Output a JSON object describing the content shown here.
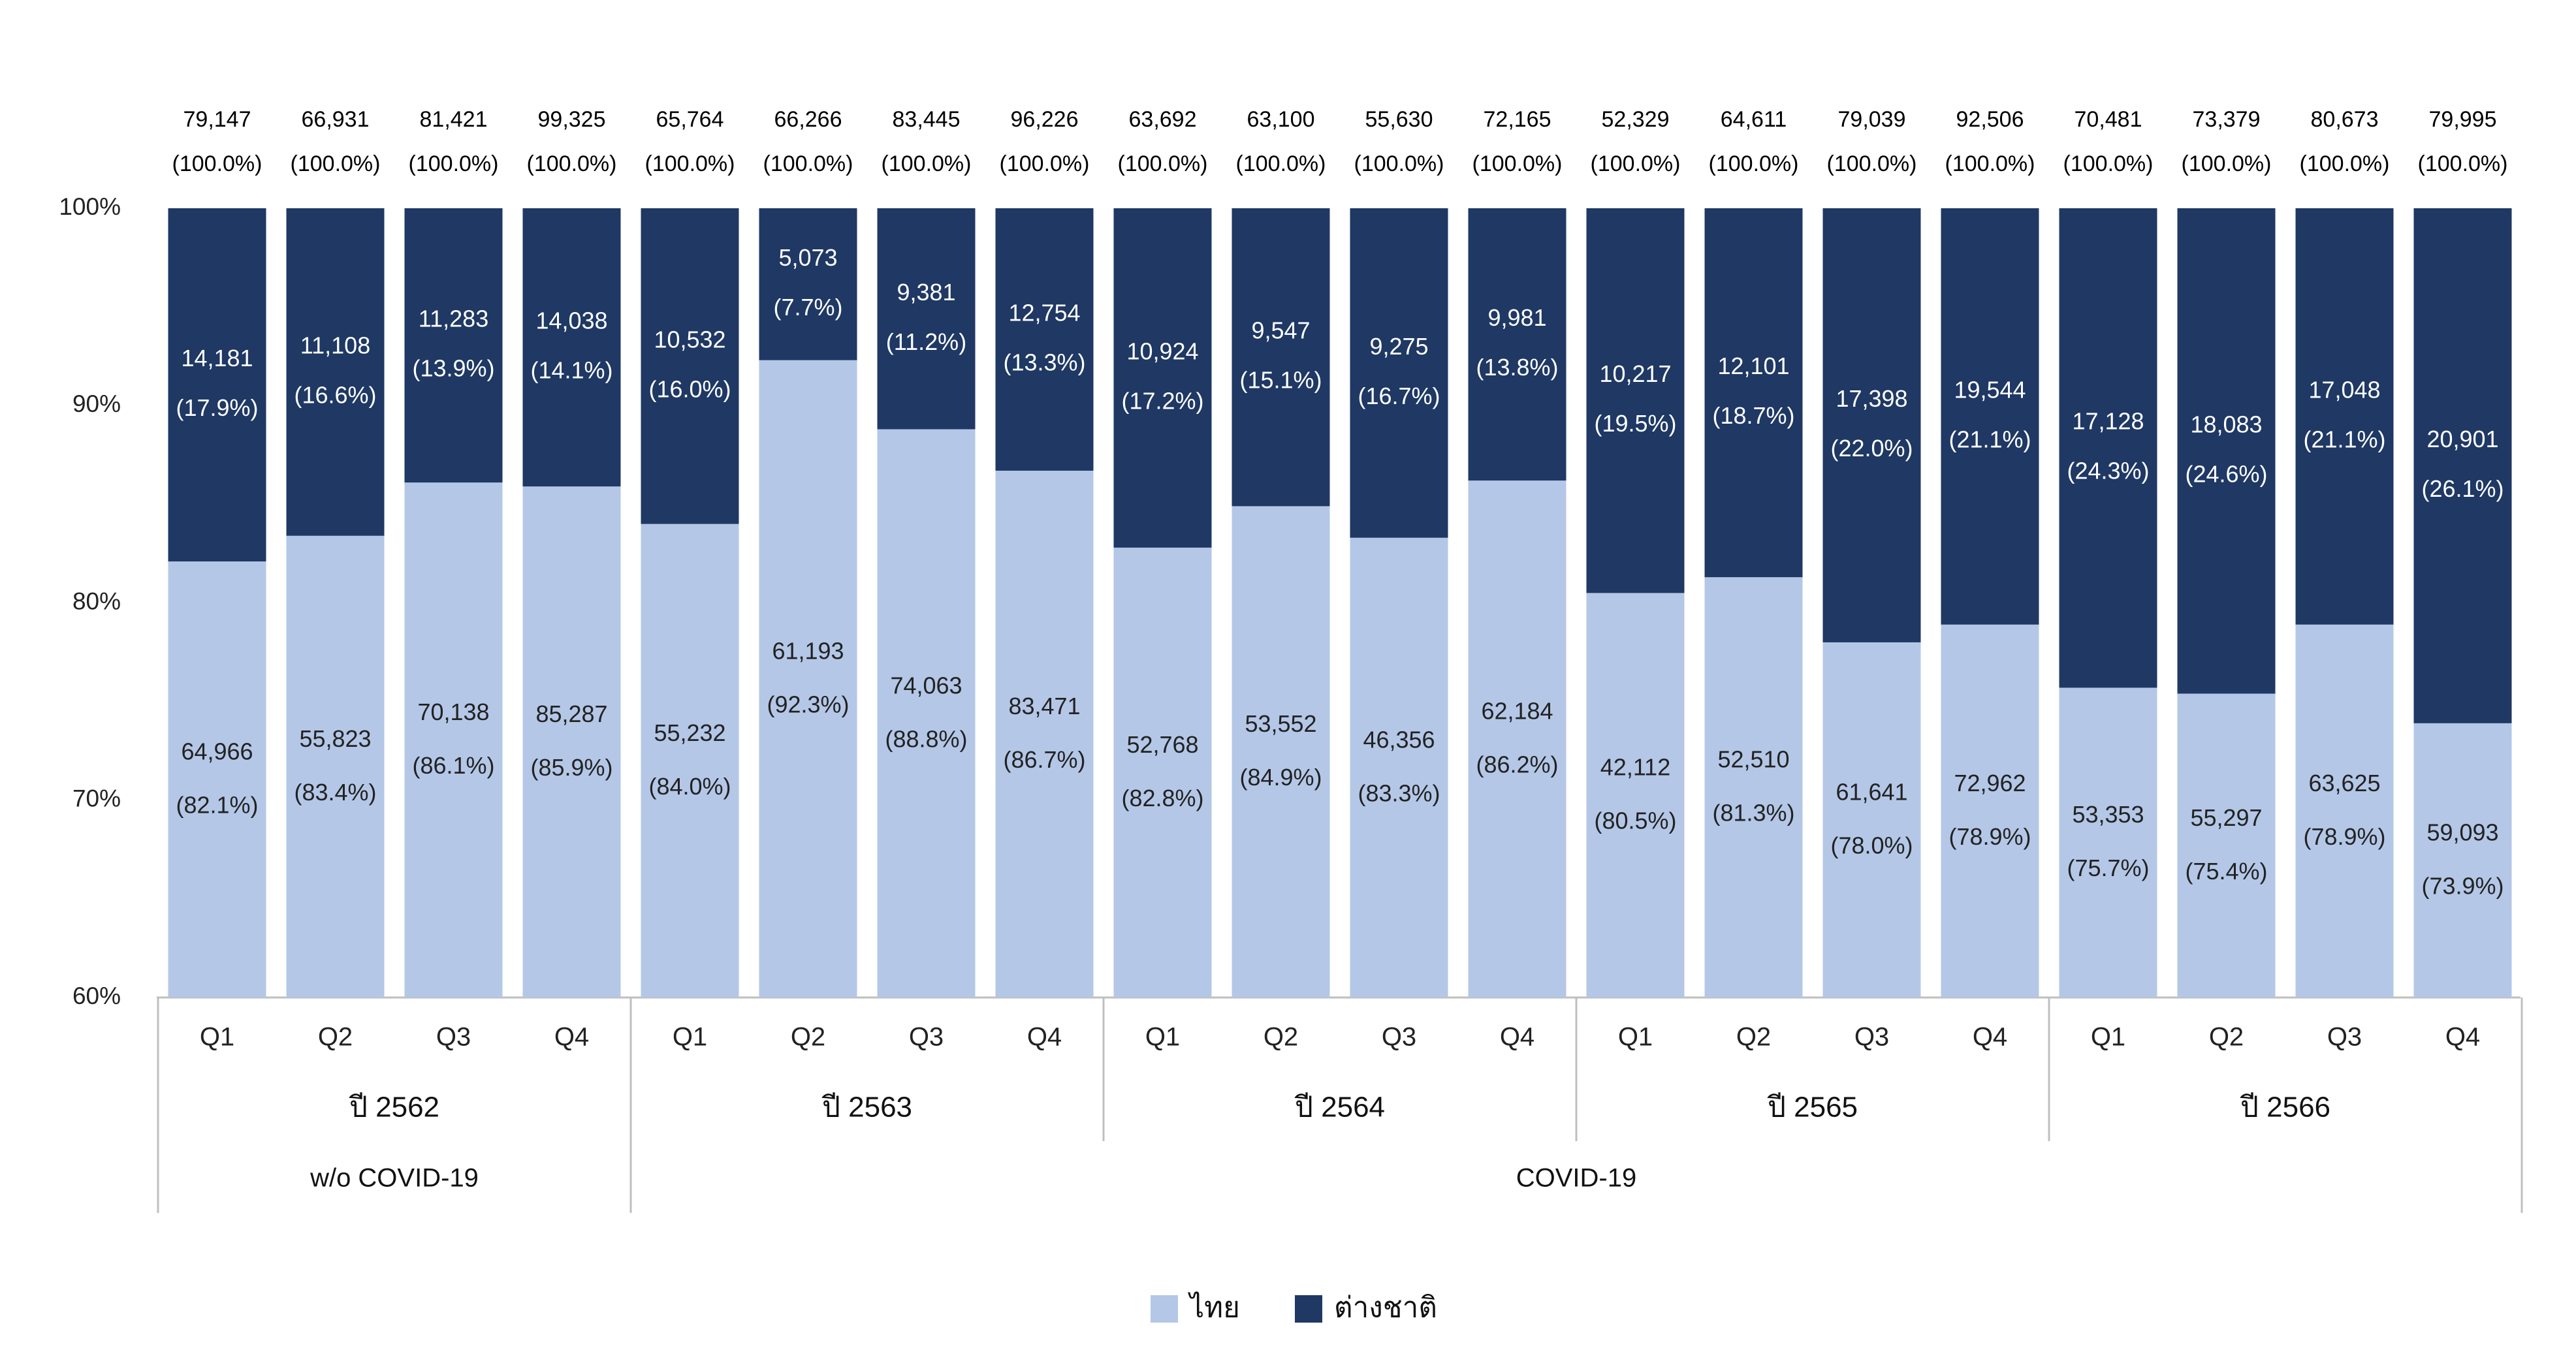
{
  "chart_data": {
    "type": "bar",
    "stacked": true,
    "percent": true,
    "ylim": [
      60,
      100
    ],
    "yticks": [
      60,
      70,
      80,
      90,
      100
    ],
    "ytick_labels": [
      "60%",
      "70%",
      "80%",
      "90%",
      "100%"
    ],
    "grid": false,
    "legend_position": "bottom",
    "categories": [
      "Q1",
      "Q2",
      "Q3",
      "Q4",
      "Q1",
      "Q2",
      "Q3",
      "Q4",
      "Q1",
      "Q2",
      "Q3",
      "Q4",
      "Q1",
      "Q2",
      "Q3",
      "Q4",
      "Q1",
      "Q2",
      "Q3",
      "Q4"
    ],
    "years": [
      "ปี 2562",
      "ปี 2563",
      "ปี 2564",
      "ปี 2565",
      "ปี 2566"
    ],
    "periods": [
      {
        "label": "w/o COVID-19",
        "years": 1
      },
      {
        "label": "COVID-19",
        "years": 4
      }
    ],
    "totals": [
      "79,147",
      "66,931",
      "81,421",
      "99,325",
      "65,764",
      "66,266",
      "83,445",
      "96,226",
      "63,692",
      "63,100",
      "55,630",
      "72,165",
      "52,329",
      "64,611",
      "79,039",
      "92,506",
      "70,481",
      "73,379",
      "80,673",
      "79,995"
    ],
    "total_pct_label": "(100.0%)",
    "series": [
      {
        "name": "ไทย",
        "color": "#b4c7e7",
        "label_color": "#222222",
        "counts": [
          "64,966",
          "55,823",
          "70,138",
          "85,287",
          "55,232",
          "61,193",
          "74,063",
          "83,471",
          "52,768",
          "53,552",
          "46,356",
          "62,184",
          "42,112",
          "52,510",
          "61,641",
          "72,962",
          "53,353",
          "55,297",
          "63,625",
          "59,093"
        ],
        "percents": [
          82.1,
          83.4,
          86.1,
          85.9,
          84.0,
          92.3,
          88.8,
          86.7,
          82.8,
          84.9,
          83.3,
          86.2,
          80.5,
          81.3,
          78.0,
          78.9,
          75.7,
          75.4,
          78.9,
          73.9
        ]
      },
      {
        "name": "ต่างชาติ",
        "color": "#1f3864",
        "label_color": "#ffffff",
        "counts": [
          "14,181",
          "11,108",
          "11,283",
          "14,038",
          "10,532",
          "5,073",
          "9,381",
          "12,754",
          "10,924",
          "9,547",
          "9,275",
          "9,981",
          "10,217",
          "12,101",
          "17,398",
          "19,544",
          "17,128",
          "18,083",
          "17,048",
          "20,901"
        ],
        "percents": [
          17.9,
          16.6,
          13.9,
          14.1,
          16.0,
          7.7,
          11.2,
          13.3,
          17.2,
          15.1,
          16.7,
          13.8,
          19.5,
          18.7,
          22.0,
          21.1,
          24.3,
          24.6,
          21.1,
          26.1
        ]
      }
    ]
  }
}
